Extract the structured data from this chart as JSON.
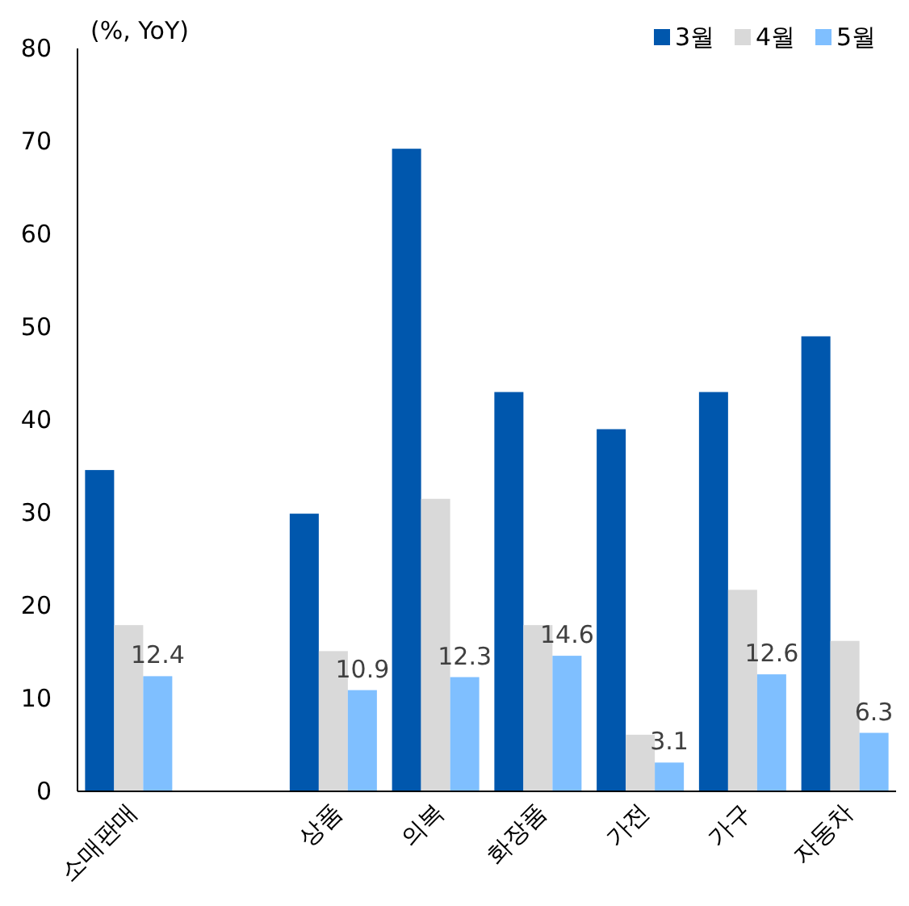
{
  "chart_data": {
    "type": "bar",
    "ylabel": "(%, YoY)",
    "categories": [
      "소매판매",
      null,
      "상품",
      "의복",
      "화장품",
      "가전",
      "가구",
      "자동차"
    ],
    "series": [
      {
        "name": "3월",
        "color": "#0057ad",
        "values": [
          34.6,
          null,
          29.9,
          69.2,
          43.0,
          39.0,
          43.0,
          49.0
        ]
      },
      {
        "name": "4월",
        "color": "#d9d9d9",
        "values": [
          17.9,
          null,
          15.1,
          31.5,
          17.9,
          6.1,
          21.7,
          16.2
        ]
      },
      {
        "name": "5월",
        "color": "#7fbfff",
        "values": [
          12.4,
          null,
          10.9,
          12.3,
          14.6,
          3.1,
          12.6,
          6.3
        ],
        "value_labels": [
          "12.4",
          null,
          "10.9",
          "12.3",
          "14.6",
          "3.1",
          "12.6",
          "6.3"
        ]
      }
    ],
    "ylim": [
      0,
      80
    ],
    "yticks": [
      0,
      10,
      20,
      30,
      40,
      50,
      60,
      70,
      80
    ],
    "legend": "top right",
    "grid": false
  }
}
